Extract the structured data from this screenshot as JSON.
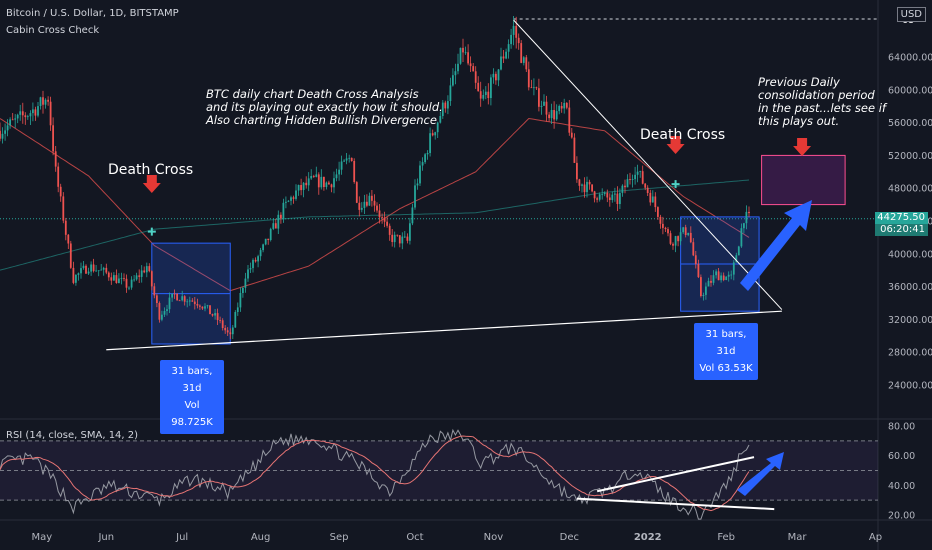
{
  "header": {
    "symbol_line": "Bitcoin / U.S. Dollar, 1D, BITSTAMP",
    "indicator_line": "Cabin Cross Check",
    "currency": "USD"
  },
  "annotations": {
    "main_note": [
      "BTC daily chart Death Cross Analysis",
      "and its playing out exactly how it should.",
      "Also charting Hidden Bullish Divergence"
    ],
    "right_note": [
      "Previous Daily",
      "consolidation period",
      "in the past...lets see if",
      "this plays out."
    ],
    "death_cross_left": "Death Cross",
    "death_cross_right": "Death Cross",
    "stat_left": [
      "31 bars, 31d",
      "Vol 98.725K"
    ],
    "stat_right": [
      "31 bars, 31d",
      "Vol 63.53K"
    ]
  },
  "price_axis": {
    "ticks": [
      "64000.00",
      "60000.00",
      "56000.00",
      "52000.00",
      "48000.00",
      "44000.00",
      "40000.00",
      "36000.00",
      "32000.00",
      "28000.00",
      "24000.00"
    ],
    "top_tag": "68",
    "last_price": "44275.50",
    "countdown": "06:20:41"
  },
  "rsi": {
    "title": "RSI (14, close, SMA, 14, 2)",
    "ticks": [
      "80.00",
      "60.00",
      "40.00",
      "20.00"
    ]
  },
  "time_axis": {
    "labels": [
      "May",
      "Jun",
      "Jul",
      "Aug",
      "Sep",
      "Oct",
      "Nov",
      "Dec",
      "2022",
      "Feb",
      "Mar",
      "Ap"
    ]
  },
  "colors": {
    "background": "#131722",
    "up": "#26a69a",
    "down": "#ef5350",
    "accent_blue": "#2962ff",
    "ma_fast": "#ef5350",
    "ma_slow": "#26a69a",
    "rsi_line": "#9598a1",
    "rsi_ma": "#e57373",
    "consolidation_box": "#ff4f91"
  },
  "chart_data": {
    "type": "candlestick",
    "title": "Bitcoin / U.S. Dollar, 1D, BITSTAMP",
    "y_axis": {
      "min": 21000,
      "max": 69000,
      "scale": "linear",
      "position": "right"
    },
    "grid": false,
    "x_axis_labels": [
      "May",
      "Jun",
      "Jul",
      "Aug",
      "Sep",
      "Oct",
      "Nov",
      "Dec",
      "2022",
      "Feb",
      "Mar",
      "Ap"
    ],
    "price_anchors": [
      {
        "date": "2021-04-20",
        "close": 55000
      },
      {
        "date": "2021-05-03",
        "close": 57500
      },
      {
        "date": "2021-05-09",
        "close": 59000
      },
      {
        "date": "2021-05-12",
        "close": 50000
      },
      {
        "date": "2021-05-19",
        "close": 37000
      },
      {
        "date": "2021-05-25",
        "close": 38500
      },
      {
        "date": "2021-06-02",
        "close": 37500
      },
      {
        "date": "2021-06-10",
        "close": 36000
      },
      {
        "date": "2021-06-17",
        "close": 38500
      },
      {
        "date": "2021-06-22",
        "close": 32500
      },
      {
        "date": "2021-06-28",
        "close": 35000
      },
      {
        "date": "2021-07-08",
        "close": 34000
      },
      {
        "date": "2021-07-15",
        "close": 32000
      },
      {
        "date": "2021-07-20",
        "close": 29800
      },
      {
        "date": "2021-07-26",
        "close": 37500
      },
      {
        "date": "2021-08-01",
        "close": 40000
      },
      {
        "date": "2021-08-10",
        "close": 45500
      },
      {
        "date": "2021-08-15",
        "close": 47500
      },
      {
        "date": "2021-08-22",
        "close": 49000
      },
      {
        "date": "2021-08-28",
        "close": 48500
      },
      {
        "date": "2021-09-06",
        "close": 52000
      },
      {
        "date": "2021-09-08",
        "close": 46000
      },
      {
        "date": "2021-09-14",
        "close": 47000
      },
      {
        "date": "2021-09-21",
        "close": 42000
      },
      {
        "date": "2021-09-28",
        "close": 41500
      },
      {
        "date": "2021-10-01",
        "close": 48000
      },
      {
        "date": "2021-10-07",
        "close": 54000
      },
      {
        "date": "2021-10-15",
        "close": 60000
      },
      {
        "date": "2021-10-20",
        "close": 65000
      },
      {
        "date": "2021-10-27",
        "close": 58500
      },
      {
        "date": "2021-11-01",
        "close": 61000
      },
      {
        "date": "2021-11-09",
        "close": 67500
      },
      {
        "date": "2021-11-16",
        "close": 60000
      },
      {
        "date": "2021-11-24",
        "close": 57000
      },
      {
        "date": "2021-11-30",
        "close": 57500
      },
      {
        "date": "2021-12-04",
        "close": 49000
      },
      {
        "date": "2021-12-13",
        "close": 47000
      },
      {
        "date": "2021-12-20",
        "close": 46500
      },
      {
        "date": "2021-12-27",
        "close": 50500
      },
      {
        "date": "2022-01-03",
        "close": 46500
      },
      {
        "date": "2022-01-10",
        "close": 41500
      },
      {
        "date": "2022-01-17",
        "close": 43000
      },
      {
        "date": "2022-01-22",
        "close": 35000
      },
      {
        "date": "2022-01-28",
        "close": 37500
      },
      {
        "date": "2022-02-03",
        "close": 37000
      },
      {
        "date": "2022-02-08",
        "close": 44500
      },
      {
        "date": "2022-02-10",
        "close": 44275.5
      }
    ],
    "series": [
      {
        "name": "Cabin Cross Check fast MA",
        "color": "#ef5350",
        "points": [
          {
            "date": "2021-04-20",
            "value": 56500
          },
          {
            "date": "2021-05-25",
            "value": 49500
          },
          {
            "date": "2021-06-20",
            "value": 41000
          },
          {
            "date": "2021-07-20",
            "value": 35500
          },
          {
            "date": "2021-08-20",
            "value": 38500
          },
          {
            "date": "2021-09-25",
            "value": 45500
          },
          {
            "date": "2021-10-25",
            "value": 50000
          },
          {
            "date": "2021-11-15",
            "value": 56500
          },
          {
            "date": "2021-12-15",
            "value": 55000
          },
          {
            "date": "2022-01-15",
            "value": 47000
          },
          {
            "date": "2022-02-10",
            "value": 42000
          }
        ]
      },
      {
        "name": "Cabin Cross Check slow MA",
        "color": "#26a69a",
        "points": [
          {
            "date": "2021-04-20",
            "value": 38000
          },
          {
            "date": "2021-06-20",
            "value": 43000
          },
          {
            "date": "2021-08-20",
            "value": 44500
          },
          {
            "date": "2021-10-25",
            "value": 45000
          },
          {
            "date": "2021-12-15",
            "value": 47500
          },
          {
            "date": "2022-02-10",
            "value": 49000
          }
        ]
      }
    ],
    "rsi": {
      "title": "RSI (14, close, SMA, 14, 2)",
      "y_axis": {
        "min": 15,
        "max": 82
      },
      "bands": [
        70,
        50,
        30
      ],
      "points": [
        {
          "date": "2021-04-20",
          "value": 55
        },
        {
          "date": "2021-05-03",
          "value": 58
        },
        {
          "date": "2021-05-12",
          "value": 42
        },
        {
          "date": "2021-05-19",
          "value": 25
        },
        {
          "date": "2021-06-02",
          "value": 40
        },
        {
          "date": "2021-06-22",
          "value": 30
        },
        {
          "date": "2021-07-05",
          "value": 45
        },
        {
          "date": "2021-07-20",
          "value": 35
        },
        {
          "date": "2021-08-08",
          "value": 70
        },
        {
          "date": "2021-08-22",
          "value": 72
        },
        {
          "date": "2021-09-08",
          "value": 55
        },
        {
          "date": "2021-09-21",
          "value": 36
        },
        {
          "date": "2021-10-07",
          "value": 72
        },
        {
          "date": "2021-10-20",
          "value": 74
        },
        {
          "date": "2021-10-27",
          "value": 55
        },
        {
          "date": "2021-11-09",
          "value": 66
        },
        {
          "date": "2021-11-24",
          "value": 42
        },
        {
          "date": "2021-12-04",
          "value": 29
        },
        {
          "date": "2021-12-20",
          "value": 40
        },
        {
          "date": "2021-12-27",
          "value": 52
        },
        {
          "date": "2022-01-10",
          "value": 30
        },
        {
          "date": "2022-01-22",
          "value": 20
        },
        {
          "date": "2022-02-03",
          "value": 45
        },
        {
          "date": "2022-02-08",
          "value": 67
        },
        {
          "date": "2022-02-10",
          "value": 64
        }
      ]
    },
    "annotations": [
      {
        "type": "death_cross",
        "date": "2021-06-19",
        "label": "Death Cross"
      },
      {
        "type": "death_cross",
        "date": "2022-01-12",
        "label": "Death Cross"
      },
      {
        "type": "range",
        "from": "2021-06-19",
        "to": "2021-07-20",
        "low": 29000,
        "high": 41300,
        "label": "31 bars, 31d",
        "volume": "Vol 98.725K"
      },
      {
        "type": "range",
        "from": "2022-01-14",
        "to": "2022-02-14",
        "low": 33000,
        "high": 44500,
        "label": "31 bars, 31d",
        "volume": "Vol 63.53K"
      },
      {
        "type": "projection_box",
        "from": "2022-02-15",
        "to": "2022-03-20",
        "low": 46000,
        "high": 52000
      }
    ]
  }
}
